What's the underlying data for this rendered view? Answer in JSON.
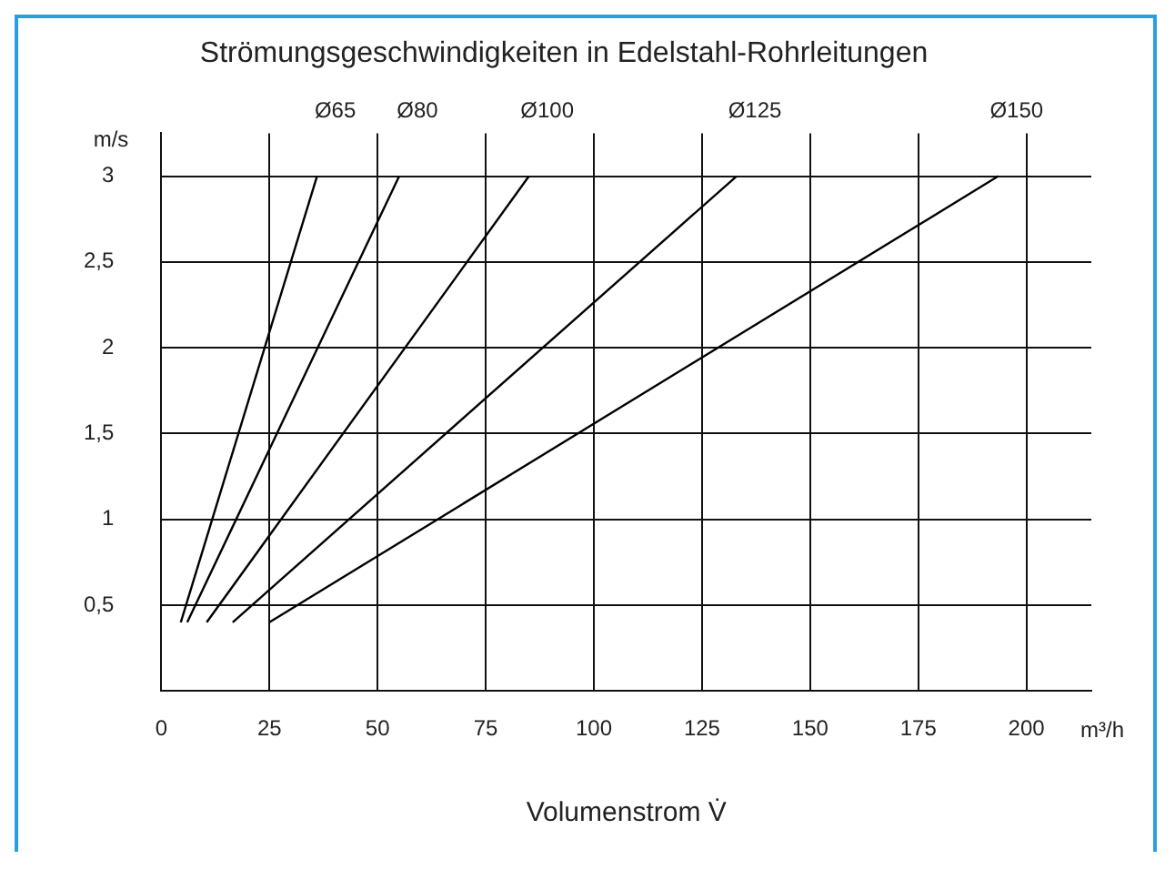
{
  "chart_data": {
    "type": "line",
    "title": "Strömungsgeschwindigkeiten in Edelstahl-Rohrleitungen",
    "xlabel": "Volumenstrom V̇",
    "ylabel": "m/s",
    "annotations": [
      "m³/h"
    ],
    "series": [
      {
        "name": "Ø65",
        "color": "#000000",
        "x": [
          4.5,
          36
        ],
        "values": [
          0.4,
          3
        ]
      },
      {
        "name": "Ø80",
        "color": "#000000",
        "x": [
          6,
          55
        ],
        "values": [
          0.4,
          3
        ]
      },
      {
        "name": "Ø100",
        "color": "#000000",
        "x": [
          10.5,
          85
        ],
        "values": [
          0.4,
          3
        ]
      },
      {
        "name": "Ø125",
        "color": "#000000",
        "x": [
          16.5,
          133
        ],
        "values": [
          0.4,
          3
        ]
      },
      {
        "name": "Ø150",
        "color": "#000000",
        "x": [
          25,
          193.5
        ],
        "values": [
          0.4,
          3
        ]
      }
    ],
    "xlim": [
      0,
      215
    ],
    "xticks": [
      0,
      25,
      50,
      75,
      100,
      125,
      150,
      175,
      200
    ],
    "ylim": [
      0,
      3.25
    ],
    "yticks": [
      {
        "value": 0.5,
        "label": "0,5"
      },
      1,
      {
        "value": 1.5,
        "label": "1,5"
      },
      2,
      {
        "value": 2.5,
        "label": "2,5"
      },
      3
    ],
    "grid": true,
    "legend": false,
    "marker": "none",
    "line_style": "solid"
  }
}
